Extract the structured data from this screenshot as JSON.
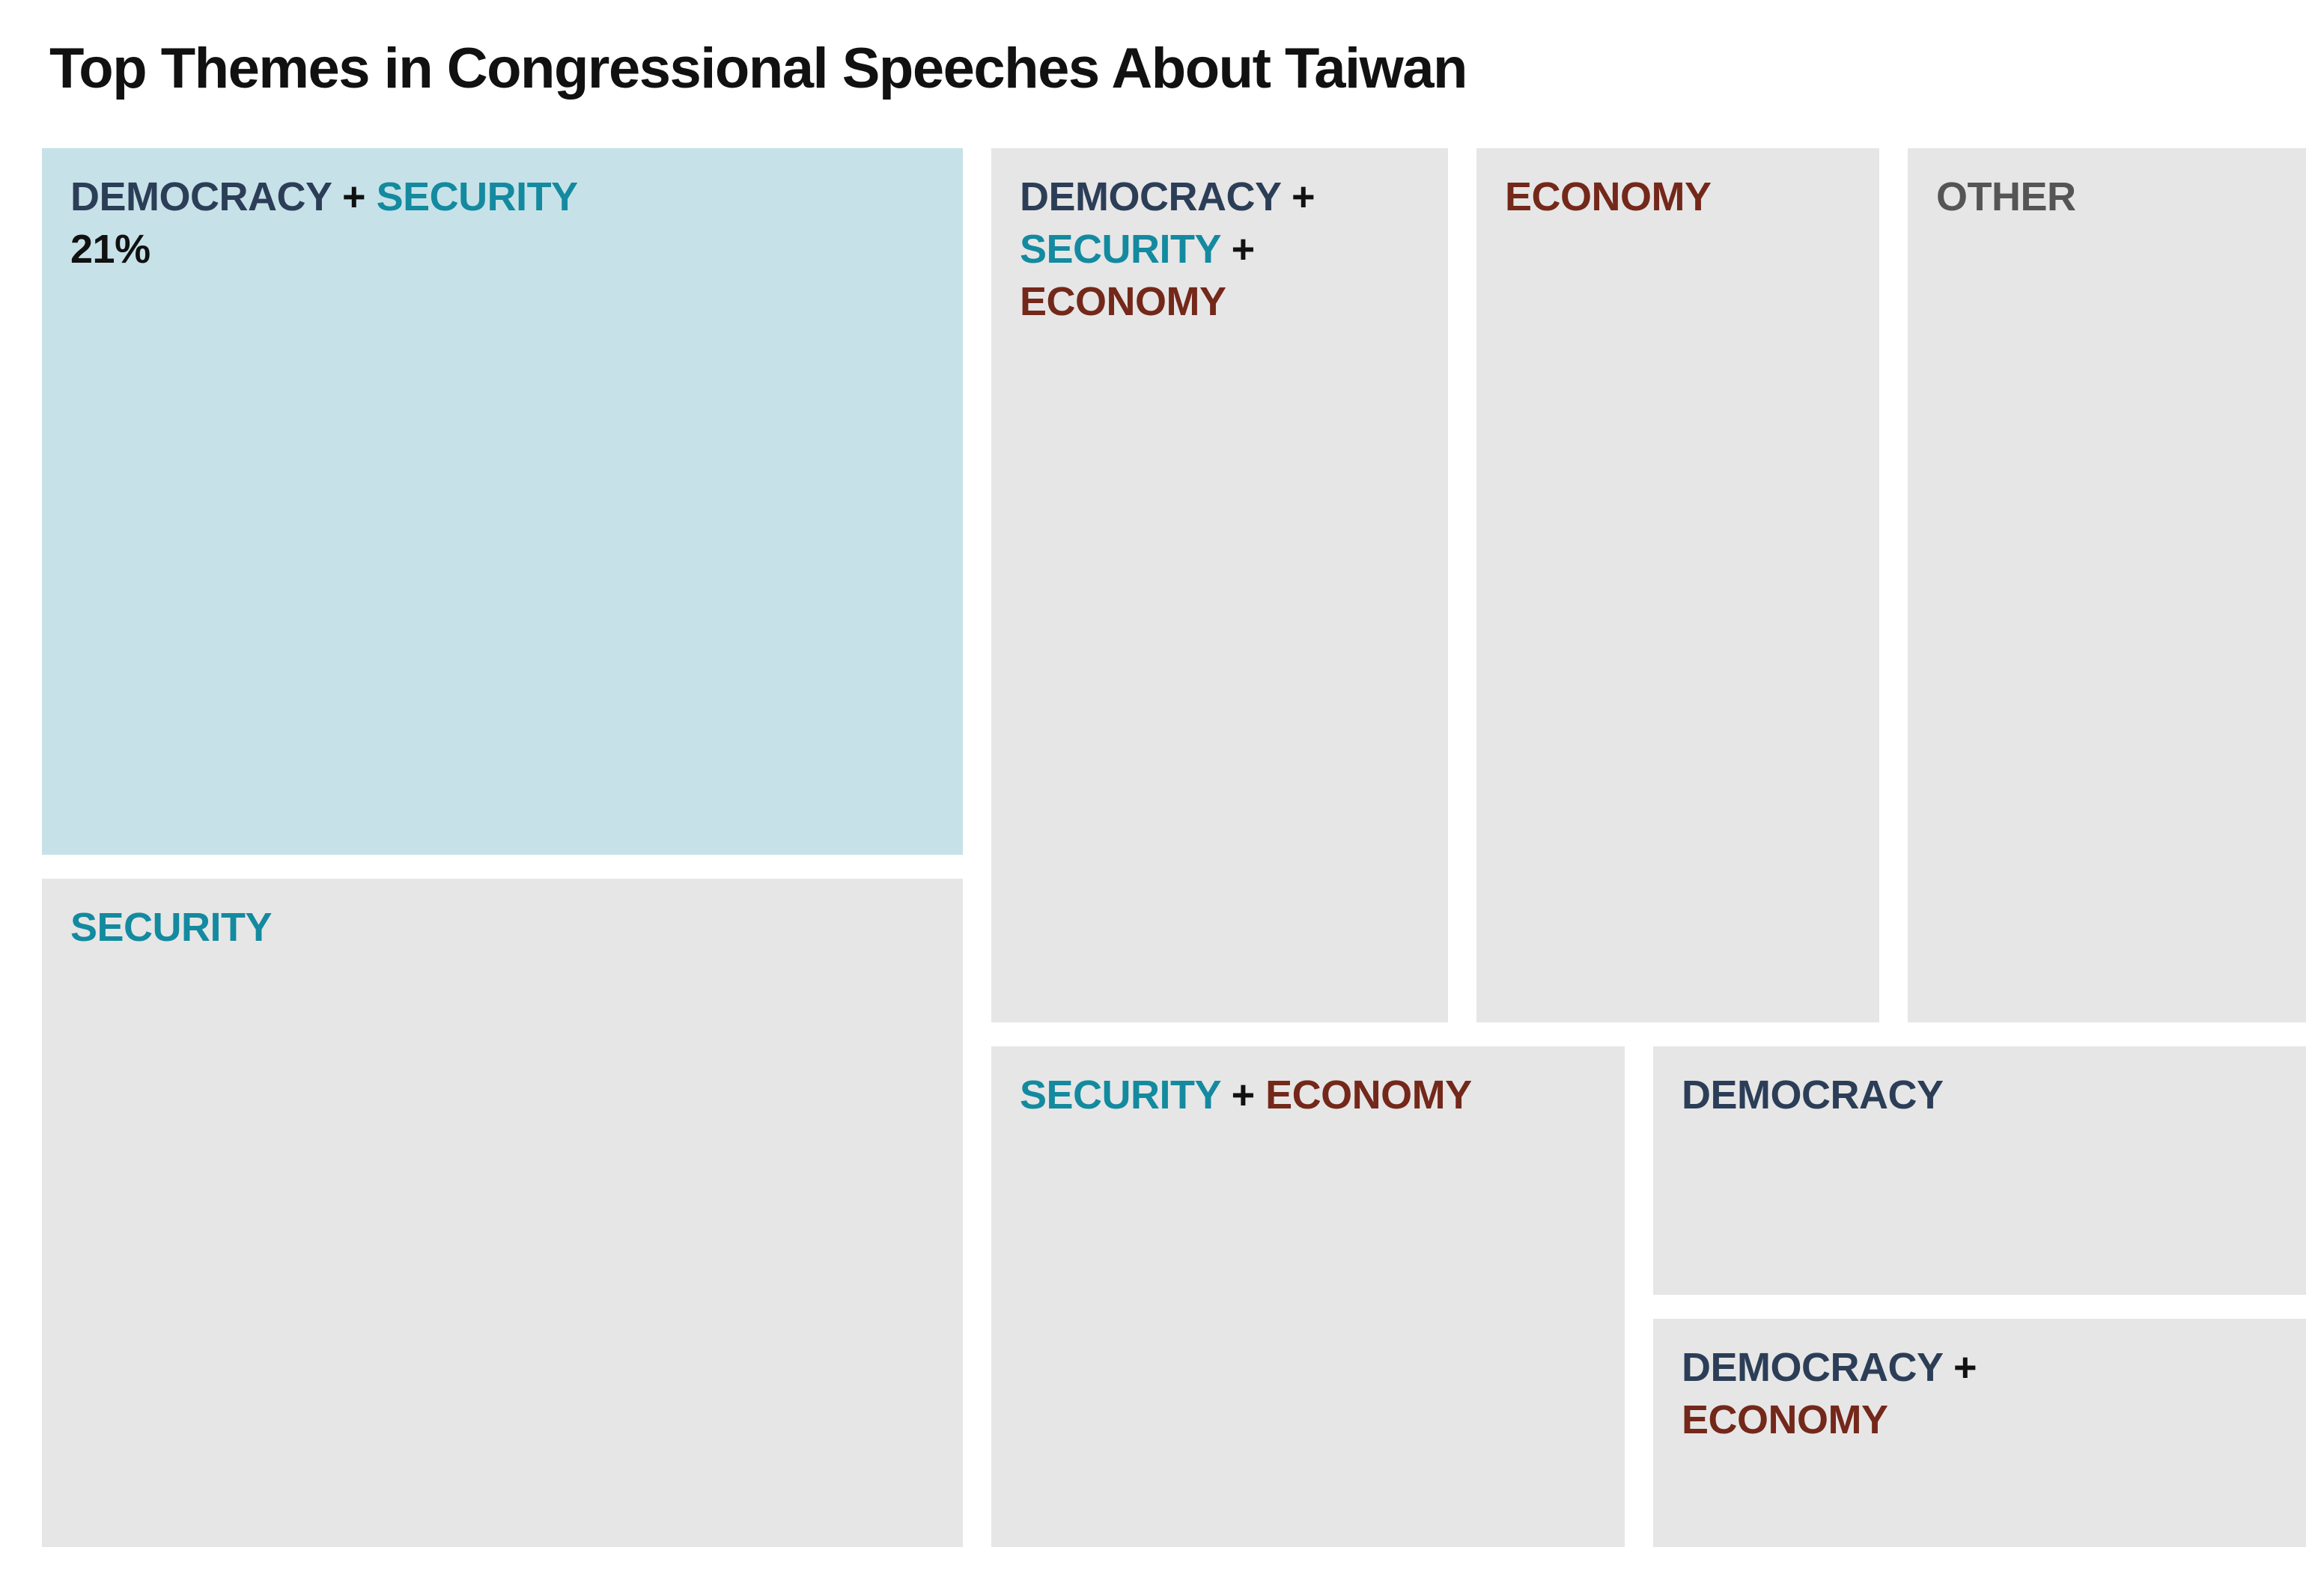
{
  "chart_data": {
    "type": "treemap",
    "title": "Top Themes in Congressional Speeches About Taiwan",
    "colors": {
      "democracy": "#2c3e57",
      "security": "#138a9f",
      "economy": "#74281a",
      "other": "#555555",
      "highlight_fill": "#c6e2e8",
      "default_fill": "#e6e6e6"
    },
    "cells": [
      {
        "id": "democracy-security",
        "parts": [
          {
            "text": "DEMOCRACY",
            "theme": "democracy"
          },
          {
            "text": "SECURITY",
            "theme": "security"
          }
        ],
        "value_label": "21%",
        "value": 21,
        "highlighted": true
      },
      {
        "id": "security",
        "parts": [
          {
            "text": "SECURITY",
            "theme": "security"
          }
        ],
        "value": 17
      },
      {
        "id": "democracy-security-economy",
        "parts": [
          {
            "text": "DEMOCRACY",
            "theme": "democracy"
          },
          {
            "text": "SECURITY",
            "theme": "security"
          },
          {
            "text": "ECONOMY",
            "theme": "economy"
          }
        ],
        "value": 11
      },
      {
        "id": "economy",
        "parts": [
          {
            "text": "ECONOMY",
            "theme": "economy"
          }
        ],
        "value": 10
      },
      {
        "id": "other",
        "parts": [
          {
            "text": "OTHER",
            "theme": "other"
          }
        ],
        "value": 10
      },
      {
        "id": "security-economy",
        "parts": [
          {
            "text": "SECURITY",
            "theme": "security"
          },
          {
            "text": "ECONOMY",
            "theme": "economy"
          }
        ],
        "value": 9
      },
      {
        "id": "democracy",
        "parts": [
          {
            "text": "DEMOCRACY",
            "theme": "democracy"
          }
        ],
        "value": 5
      },
      {
        "id": "democracy-economy",
        "parts": [
          {
            "text": "DEMOCRACY",
            "theme": "democracy"
          },
          {
            "text": "ECONOMY",
            "theme": "economy"
          }
        ],
        "value": 5
      }
    ]
  }
}
